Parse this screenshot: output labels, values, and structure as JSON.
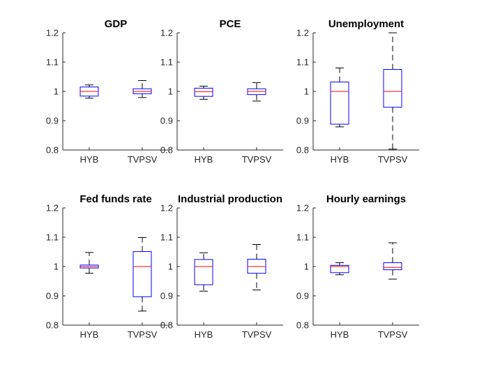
{
  "chart_data": [
    {
      "type": "boxplot",
      "title": "GDP",
      "categories": [
        "HYB",
        "TVPSV"
      ],
      "ylim": [
        0.8,
        1.2
      ],
      "yticks": [
        0.8,
        0.9,
        1,
        1.1,
        1.2
      ],
      "ytick_labels": [
        "0.8",
        "0.9",
        "1",
        "1.1",
        "1.2"
      ],
      "boxes": [
        {
          "whisker_low": 0.977,
          "q1": 0.984,
          "median": 1.0,
          "q3": 1.015,
          "whisker_high": 1.022
        },
        {
          "whisker_low": 0.979,
          "q1": 0.992,
          "median": 1.0,
          "q3": 1.009,
          "whisker_high": 1.037
        }
      ]
    },
    {
      "type": "boxplot",
      "title": "PCE",
      "categories": [
        "HYB",
        "TVPSV"
      ],
      "ylim": [
        0.8,
        1.2
      ],
      "yticks": [
        0.8,
        0.9,
        1,
        1.1,
        1.2
      ],
      "ytick_labels": [
        "0.8",
        "0.9",
        "1",
        "1.1",
        "1.2"
      ],
      "boxes": [
        {
          "whisker_low": 0.973,
          "q1": 0.983,
          "median": 0.999,
          "q3": 1.011,
          "whisker_high": 1.018
        },
        {
          "whisker_low": 0.967,
          "q1": 0.989,
          "median": 1.0,
          "q3": 1.009,
          "whisker_high": 1.03
        }
      ]
    },
    {
      "type": "boxplot",
      "title": "Unemployment",
      "categories": [
        "HYB",
        "TVPSV"
      ],
      "ylim": [
        0.8,
        1.2
      ],
      "yticks": [
        0.8,
        0.9,
        1,
        1.1,
        1.2
      ],
      "ytick_labels": [
        "0.8",
        "0.9",
        "1",
        "1.1",
        "1.2"
      ],
      "boxes": [
        {
          "whisker_low": 0.879,
          "q1": 0.888,
          "median": 1.0,
          "q3": 1.032,
          "whisker_high": 1.08
        },
        {
          "whisker_low": 0.803,
          "q1": 0.946,
          "median": 1.0,
          "q3": 1.075,
          "whisker_high": 1.2
        }
      ]
    },
    {
      "type": "boxplot",
      "title": "Fed funds rate",
      "categories": [
        "HYB",
        "TVPSV"
      ],
      "ylim": [
        0.8,
        1.2
      ],
      "yticks": [
        0.8,
        0.9,
        1,
        1.1,
        1.2
      ],
      "ytick_labels": [
        "0.8",
        "0.9",
        "1",
        "1.1",
        "1.2"
      ],
      "boxes": [
        {
          "whisker_low": 0.977,
          "q1": 0.995,
          "median": 1.0,
          "q3": 1.005,
          "whisker_high": 1.048
        },
        {
          "whisker_low": 0.848,
          "q1": 0.897,
          "median": 1.0,
          "q3": 1.051,
          "whisker_high": 1.099
        }
      ]
    },
    {
      "type": "boxplot",
      "title": "Industrial production",
      "categories": [
        "HYB",
        "TVPSV"
      ],
      "ylim": [
        0.8,
        1.2
      ],
      "yticks": [
        0.8,
        0.9,
        1,
        1.1,
        1.2
      ],
      "ytick_labels": [
        "0.8",
        "0.9",
        "1",
        "1.1",
        "1.2"
      ],
      "boxes": [
        {
          "whisker_low": 0.916,
          "q1": 0.938,
          "median": 1.0,
          "q3": 1.024,
          "whisker_high": 1.047
        },
        {
          "whisker_low": 0.92,
          "q1": 0.977,
          "median": 1.0,
          "q3": 1.025,
          "whisker_high": 1.075
        }
      ]
    },
    {
      "type": "boxplot",
      "title": "Hourly earnings",
      "categories": [
        "HYB",
        "TVPSV"
      ],
      "ylim": [
        0.8,
        1.2
      ],
      "yticks": [
        0.8,
        0.9,
        1,
        1.1,
        1.2
      ],
      "ytick_labels": [
        "0.8",
        "0.9",
        "1",
        "1.1",
        "1.2"
      ],
      "boxes": [
        {
          "whisker_low": 0.972,
          "q1": 0.979,
          "median": 1.0,
          "q3": 1.004,
          "whisker_high": 1.013
        },
        {
          "whisker_low": 0.957,
          "q1": 0.989,
          "median": 0.997,
          "q3": 1.013,
          "whisker_high": 1.081
        }
      ]
    }
  ],
  "colors": {
    "box": "#0000ff",
    "median": "#ff0000",
    "whisker": "#000000",
    "axis": "#262626",
    "background": "#ffffff"
  }
}
